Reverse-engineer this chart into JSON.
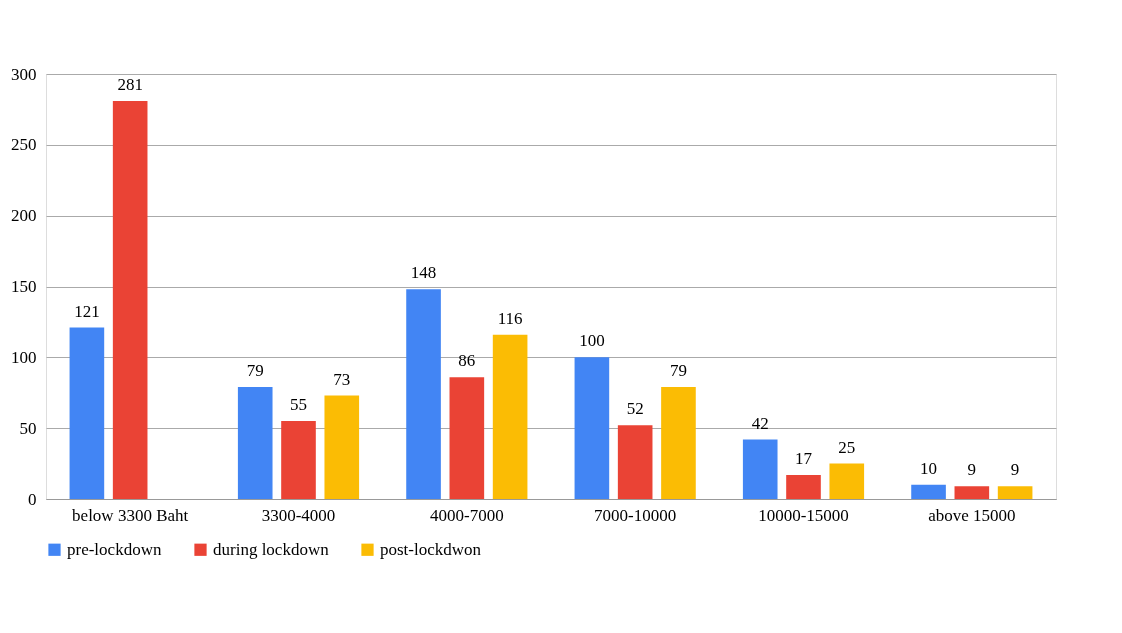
{
  "chart_data": {
    "type": "bar",
    "categories": [
      "below 3300 Baht",
      "3300-4000",
      "4000-7000",
      "7000-10000",
      "10000-15000",
      "above 15000"
    ],
    "series": [
      {
        "name": "pre-lockdown",
        "color": "#4285f4",
        "values": [
          121,
          79,
          148,
          100,
          42,
          10
        ]
      },
      {
        "name": "during lockdown",
        "color": "#ea4335",
        "values": [
          281,
          55,
          86,
          52,
          17,
          9
        ]
      },
      {
        "name": "post-lockdwon",
        "color": "#fbbc04",
        "values": [
          null,
          73,
          116,
          79,
          25,
          9
        ]
      }
    ],
    "ylim": [
      0,
      300
    ],
    "yticks": [
      0,
      50,
      100,
      150,
      200,
      250,
      300
    ],
    "grid": "y",
    "legend": "bottom",
    "data_labels": true
  }
}
